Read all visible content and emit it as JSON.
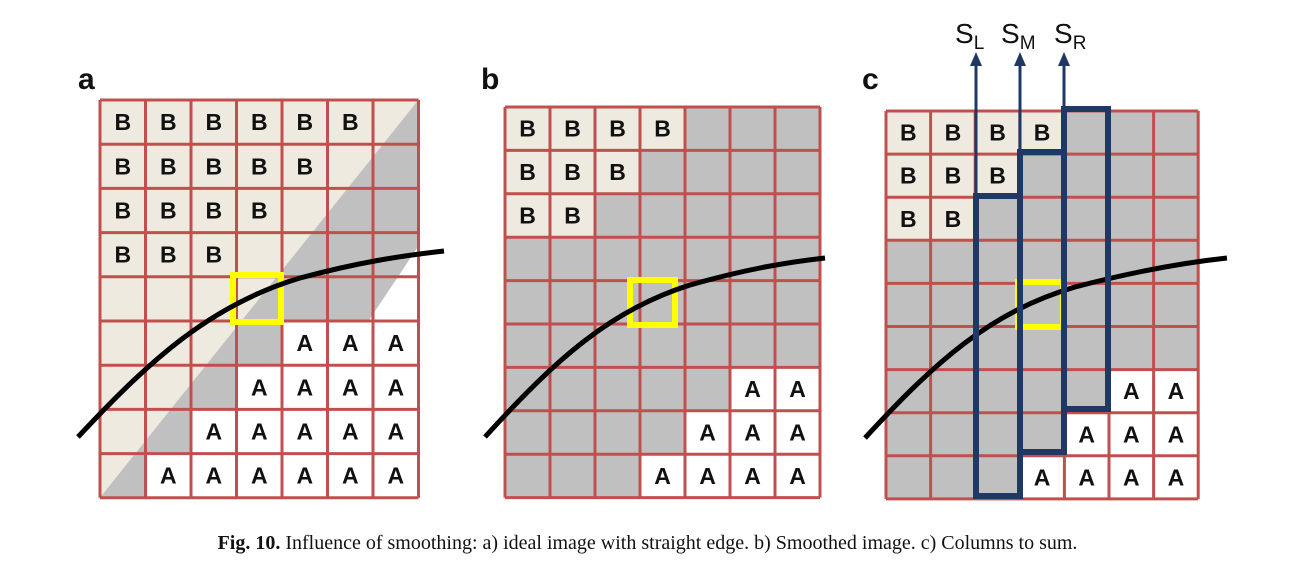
{
  "figure": {
    "panels": [
      {
        "label": "a",
        "grid": [
          "BBBBBB.",
          "BBBBB..",
          "BBBB...",
          "BBB....",
          ".......",
          "....AAA",
          "...AAAA",
          "..AAAAA",
          ".AAAAAA"
        ]
      },
      {
        "label": "b",
        "grid": [
          "BBBB...",
          "BBB....",
          "BB.....",
          ".......",
          ".......",
          ".......",
          ".....AA",
          "....AAA",
          "...AAAA"
        ]
      },
      {
        "label": "c",
        "grid": [
          "BBBB...",
          "BBB....",
          "BB.....",
          ".......",
          ".......",
          ".......",
          ".....AA",
          "....AAA",
          "...AAAA"
        ]
      }
    ],
    "column_labels": [
      {
        "main": "S",
        "sub": "L"
      },
      {
        "main": "S",
        "sub": "M"
      },
      {
        "main": "S",
        "sub": "R"
      }
    ],
    "colors": {
      "grid_line": "#c0504d",
      "gray_cell": "#c0c0c0",
      "b_cell": "#eeeae0",
      "a_cell": "#ffffff",
      "highlight": "#ffff00",
      "column_box": "#1f3864",
      "curve": "#000000"
    }
  },
  "caption": {
    "label": "Fig. 10.",
    "text": " Influence of smoothing: a) ideal image with straight edge. b) Smoothed image. c) Columns to sum."
  }
}
